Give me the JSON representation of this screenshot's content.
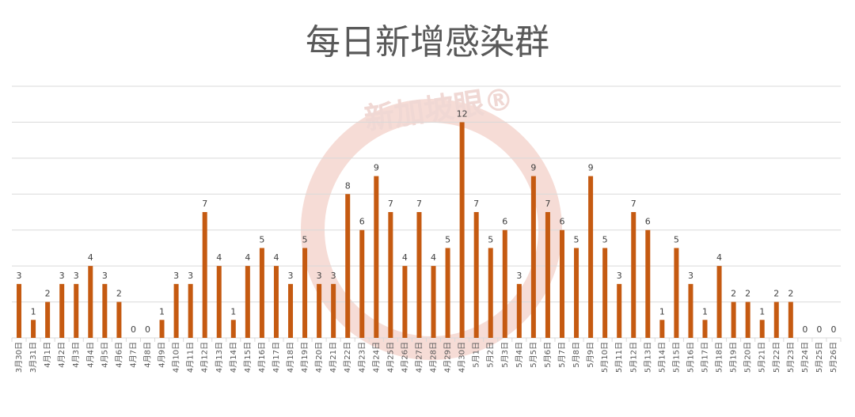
{
  "chart_data": {
    "type": "bar",
    "title": "每日新增感染群",
    "watermark": "新加坡眼®",
    "categories": [
      "3月30日",
      "3月31日",
      "4月1日",
      "4月2日",
      "4月3日",
      "4月4日",
      "4月5日",
      "4月6日",
      "4月7日",
      "4月8日",
      "4月9日",
      "4月10日",
      "4月11日",
      "4月12日",
      "4月13日",
      "4月14日",
      "4月15日",
      "4月16日",
      "4月17日",
      "4月18日",
      "4月19日",
      "4月20日",
      "4月21日",
      "4月22日",
      "4月23日",
      "4月24日",
      "4月25日",
      "4月26日",
      "4月27日",
      "4月28日",
      "4月29日",
      "4月30日",
      "5月1日",
      "5月2日",
      "5月3日",
      "5月4日",
      "5月5日",
      "5月6日",
      "5月7日",
      "5月8日",
      "5月9日",
      "5月10日",
      "5月11日",
      "5月12日",
      "5月13日",
      "5月14日",
      "5月15日",
      "5月16日",
      "5月17日",
      "5月18日",
      "5月19日",
      "5月20日",
      "5月21日",
      "5月22日",
      "5月23日",
      "5月24日",
      "5月25日",
      "5月26日"
    ],
    "values": [
      3,
      1,
      2,
      3,
      3,
      4,
      3,
      2,
      0,
      0,
      1,
      3,
      3,
      7,
      4,
      1,
      4,
      5,
      4,
      3,
      5,
      3,
      3,
      8,
      6,
      9,
      7,
      4,
      7,
      4,
      5,
      12,
      7,
      5,
      6,
      3,
      9,
      7,
      6,
      5,
      9,
      5,
      3,
      7,
      6,
      1,
      5,
      3,
      1,
      4,
      2,
      2,
      1,
      2,
      2,
      0,
      0,
      0
    ],
    "color": "#c55a11",
    "ylim": [
      0,
      14
    ],
    "yticks": [
      0,
      2,
      4,
      6,
      8,
      10,
      12,
      14
    ],
    "grid": true
  }
}
